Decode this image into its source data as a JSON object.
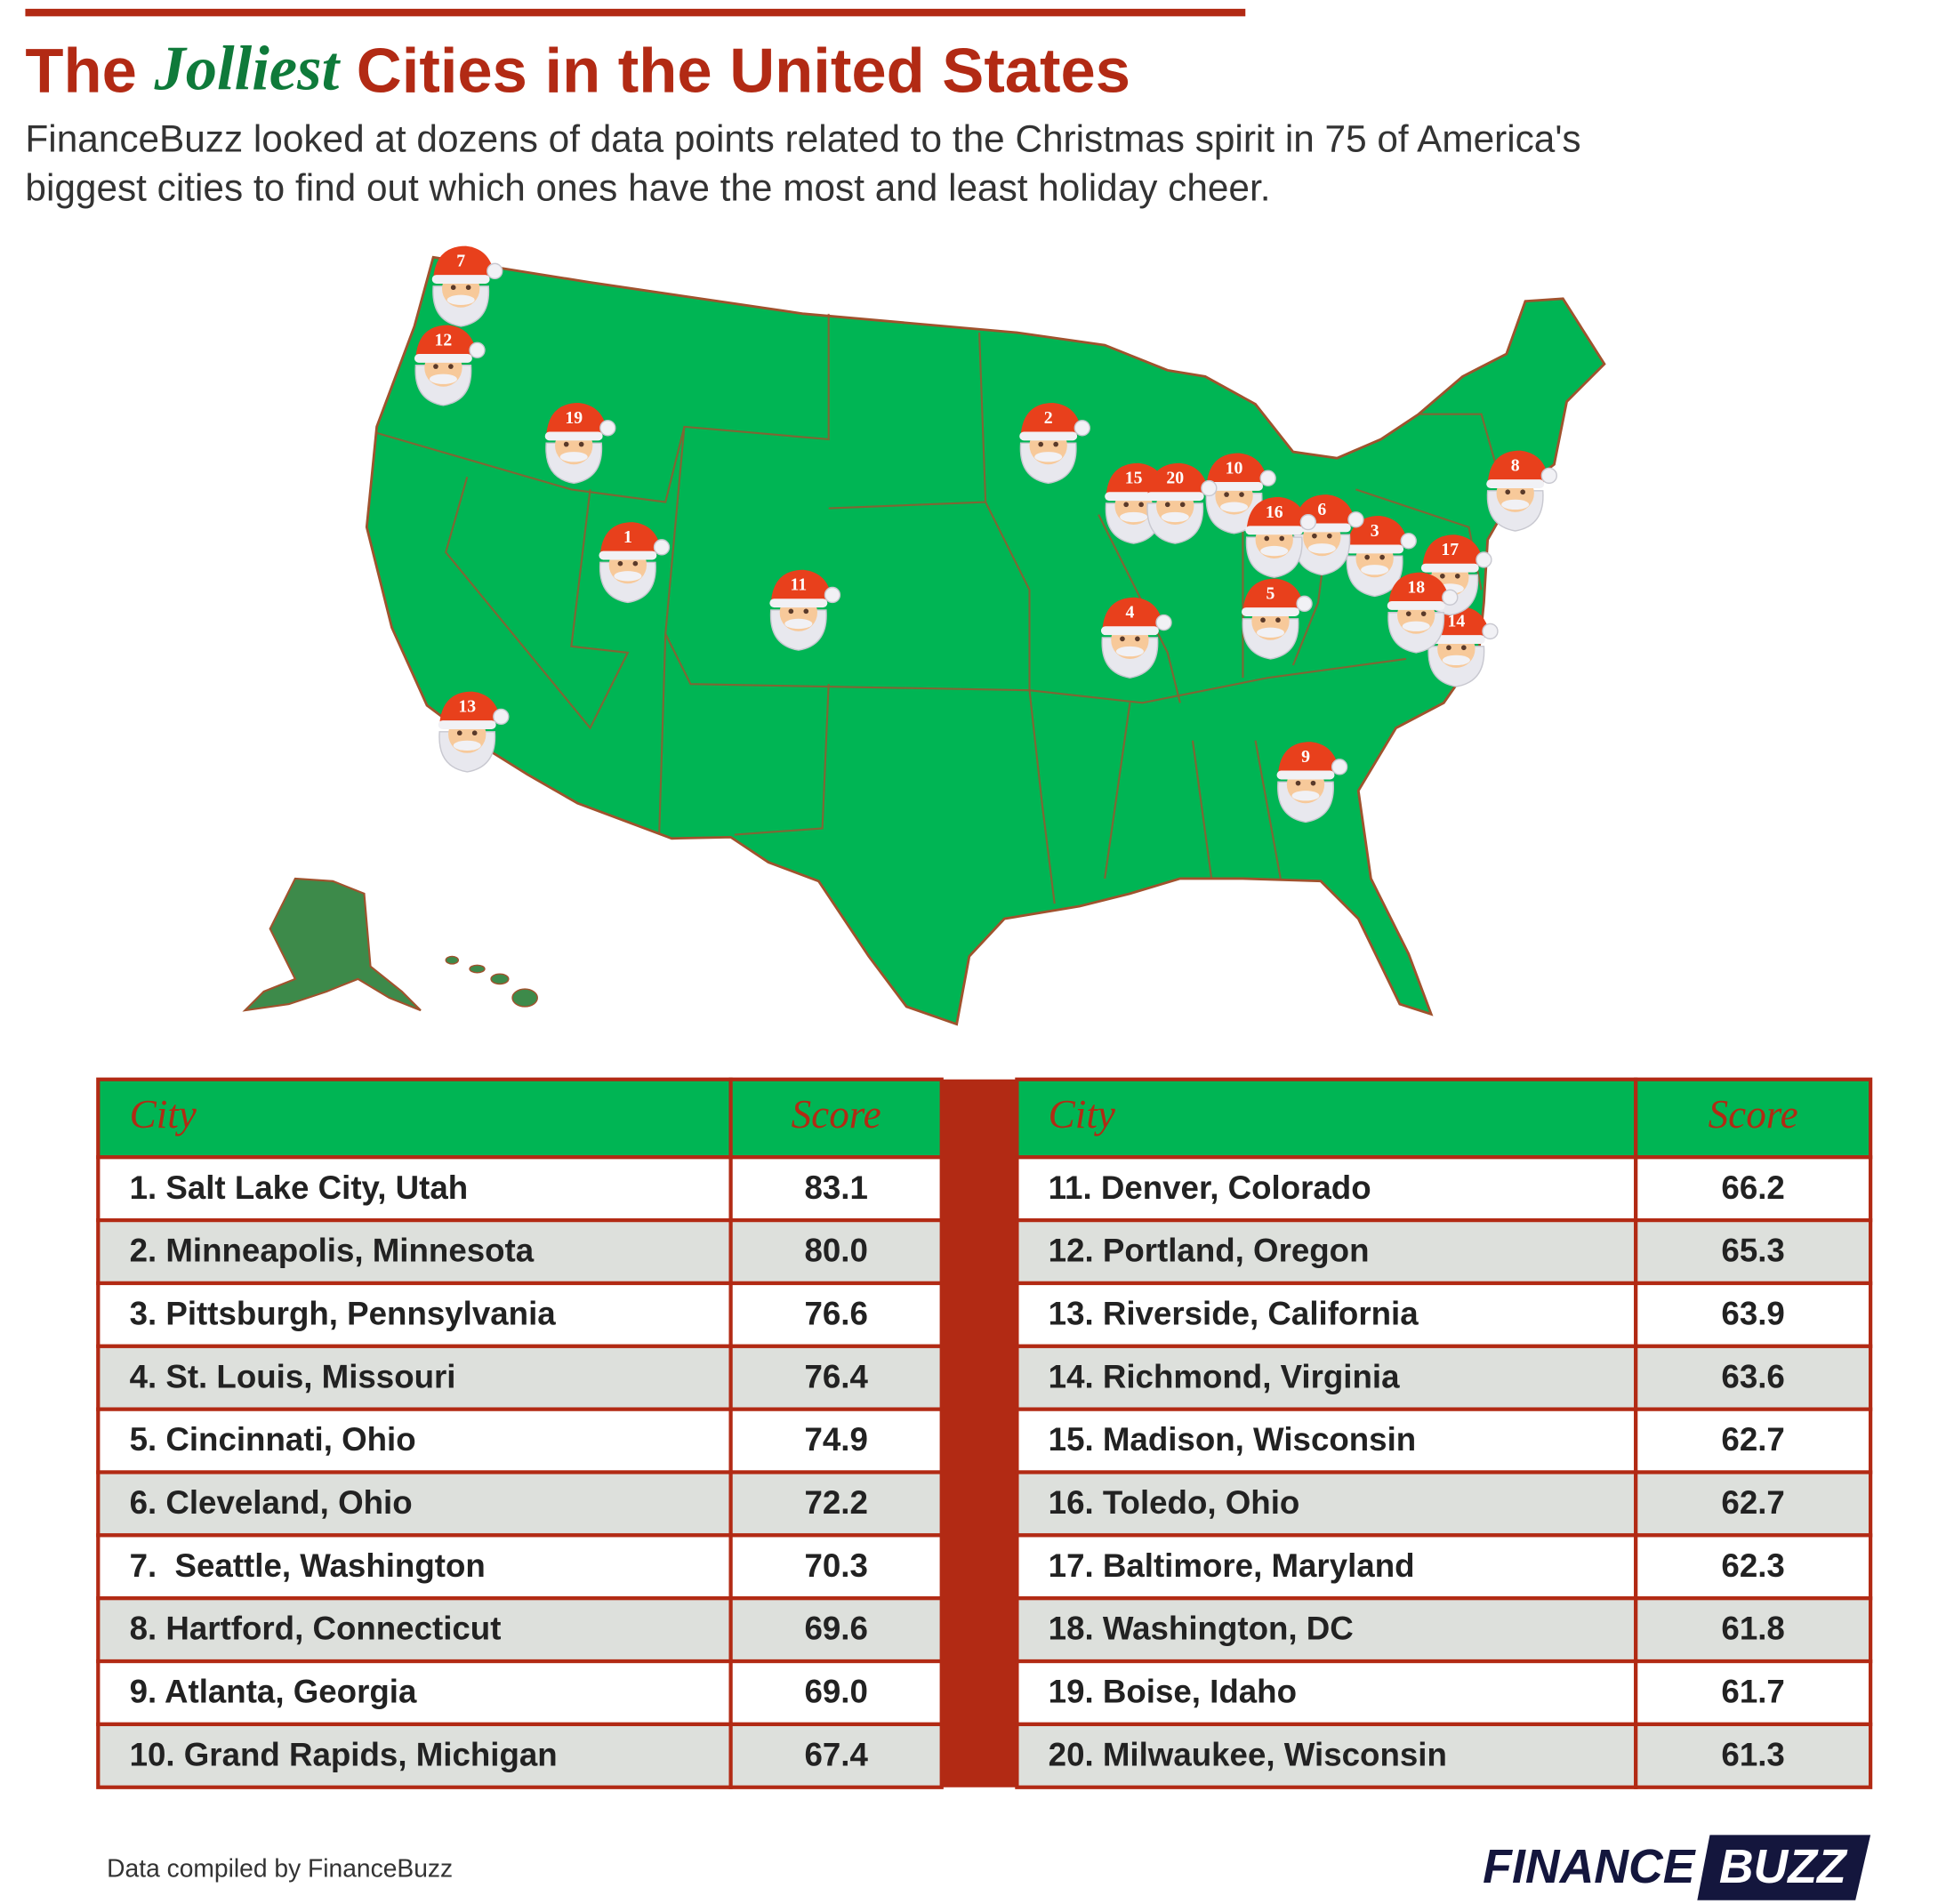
{
  "header": {
    "title": [
      "The ",
      "Jolliest",
      " Cities in the United States"
    ],
    "subtitle": [
      "FinanceBuzz looked at dozens of data points related to the Christmas spirit in 75 of America's",
      "biggest cities to find out which ones have the most and least holiday cheer."
    ]
  },
  "map": {
    "markers": [
      "1",
      "2",
      "3",
      "4",
      "5",
      "6",
      "7",
      "8",
      "9",
      "10",
      "11",
      "12",
      "13",
      "14",
      "15",
      "16",
      "17",
      "18",
      "19",
      "20"
    ]
  },
  "table": {
    "columns": [
      {
        "header": [
          "City",
          "Score"
        ],
        "rows": [
          [
            "1. Salt Lake City, Utah",
            "83.1"
          ],
          [
            "2. Minneapolis, Minnesota",
            "80.0"
          ],
          [
            "3. Pittsburgh, Pennsylvania",
            "76.6"
          ],
          [
            "4. St. Louis, Missouri",
            "76.4"
          ],
          [
            "5. Cincinnati, Ohio",
            "74.9"
          ],
          [
            "6. Cleveland, Ohio",
            "72.2"
          ],
          [
            "7.  Seattle, Washington",
            "70.3"
          ],
          [
            "8. Hartford, Connecticut",
            "69.6"
          ],
          [
            "9. Atlanta, Georgia",
            "69.0"
          ],
          [
            "10. Grand Rapids, Michigan",
            "67.4"
          ]
        ]
      },
      {
        "header": [
          "City",
          "Score"
        ],
        "rows": [
          [
            "11. Denver, Colorado",
            "66.2"
          ],
          [
            "12. Portland, Oregon",
            "65.3"
          ],
          [
            "13. Riverside, California",
            "63.9"
          ],
          [
            "14. Richmond, Virginia",
            "63.6"
          ],
          [
            "15. Madison, Wisconsin",
            "62.7"
          ],
          [
            "16. Toledo, Ohio",
            "62.7"
          ],
          [
            "17. Baltimore, Maryland",
            "62.3"
          ],
          [
            "18. Washington, DC",
            "61.8"
          ],
          [
            "19. Boise, Idaho",
            "61.7"
          ],
          [
            "20. Milwaukee, Wisconsin",
            "61.3"
          ]
        ]
      }
    ]
  },
  "footer": {
    "source": "Data compiled by FinanceBuzz",
    "logo": [
      "FINANCE",
      "BUZZ"
    ]
  }
}
